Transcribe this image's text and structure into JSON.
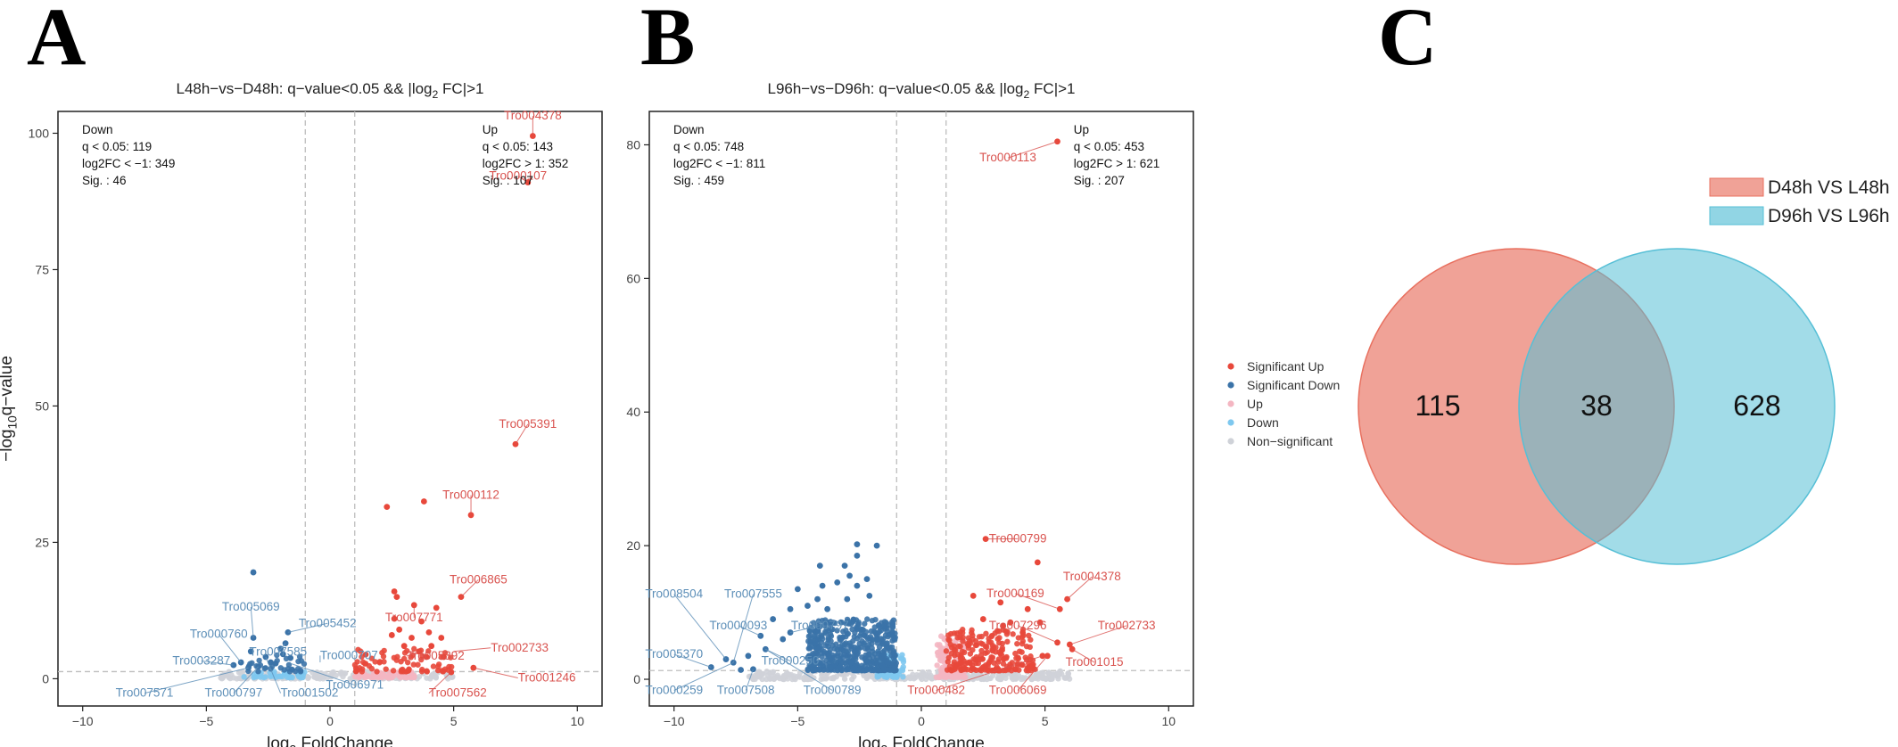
{
  "panels": {
    "a": "A",
    "b": "B",
    "c": "C"
  },
  "colors": {
    "sig_up": "#E8483B",
    "sig_down": "#3B73A8",
    "up": "#F4B6C2",
    "down": "#7EC8EF",
    "nonsig": "#CFD2D8",
    "venn_a": "#E8705F",
    "venn_b": "#56BFD6",
    "label_up": "#D9534F",
    "label_down": "#5D8FB8"
  },
  "legend": {
    "items": [
      {
        "label": "Significant Up",
        "color": "#E8483B"
      },
      {
        "label": "Significant Down",
        "color": "#3B73A8"
      },
      {
        "label": "Up",
        "color": "#F4B6C2"
      },
      {
        "label": "Down",
        "color": "#7EC8EF"
      },
      {
        "label": "Non−significant",
        "color": "#CFD2D8"
      }
    ]
  },
  "chart_data": [
    {
      "type": "scatter",
      "title_prefix": "L48h−vs−D48h: q−value<0.05 && |log",
      "title_sub": "2",
      "title_suffix": " FC|>1",
      "xlabel_pre": "log",
      "xlabel_sub": "2",
      "xlabel_post": " FoldChange",
      "ylabel_pre": "−log",
      "ylabel_sub": "10",
      "ylabel_post": "q−value",
      "xlim": [
        -11,
        11
      ],
      "ylim": [
        -5,
        104
      ],
      "xticks": [
        -10,
        -5,
        0,
        5,
        10
      ],
      "yticks": [
        0,
        25,
        50,
        75,
        100
      ],
      "vlines": [
        -1,
        1
      ],
      "hline": 1.3,
      "stats_down": [
        "Down",
        "q < 0.05: 119",
        "log2FC < −1: 349",
        "Sig. : 46"
      ],
      "stats_up": [
        "Up",
        "q < 0.05: 143",
        "log2FC > 1: 352",
        "Sig. : 107"
      ],
      "sig_up": [
        [
          8.2,
          99.5
        ],
        [
          8.0,
          91
        ],
        [
          7.5,
          43
        ],
        [
          5.7,
          30
        ],
        [
          3.8,
          32.5
        ],
        [
          2.3,
          31.5
        ],
        [
          5.3,
          15
        ],
        [
          2.6,
          16
        ],
        [
          2.7,
          15
        ],
        [
          3.4,
          13.5
        ],
        [
          4.3,
          13
        ],
        [
          3.7,
          10.5
        ],
        [
          4.0,
          8.5
        ],
        [
          2.6,
          11
        ],
        [
          3.3,
          7.5
        ],
        [
          4.1,
          6
        ],
        [
          3.6,
          5
        ],
        [
          4.6,
          4
        ],
        [
          5.8,
          2
        ],
        [
          4.9,
          1.2
        ],
        [
          3.0,
          6
        ],
        [
          2.8,
          9
        ],
        [
          4.5,
          7.5
        ],
        [
          3.9,
          4
        ],
        [
          2.5,
          8
        ]
      ],
      "sig_down": [
        [
          -3.1,
          19.5
        ],
        [
          -3.1,
          7.5
        ],
        [
          -1.7,
          8.5
        ],
        [
          -1.8,
          6.5
        ],
        [
          -2.0,
          5.5
        ],
        [
          -3.2,
          5
        ],
        [
          -3.6,
          3
        ],
        [
          -3.9,
          2.5
        ],
        [
          -2.6,
          4
        ],
        [
          -2.4,
          3
        ],
        [
          -1.9,
          4.5
        ],
        [
          -2.9,
          2.2
        ],
        [
          -3.3,
          2.0
        ],
        [
          -2.2,
          2.8
        ],
        [
          -1.6,
          3.8
        ]
      ],
      "sig_up_cluster": {
        "x": [
          1.0,
          5.0
        ],
        "y": [
          1.3,
          6.0
        ],
        "n": 75
      },
      "up_cluster": {
        "x": [
          1.0,
          3.5
        ],
        "y": [
          0.2,
          1.3
        ],
        "n": 70
      },
      "down_cluster": {
        "x": [
          -3.5,
          -1.0
        ],
        "y": [
          0.2,
          1.3
        ],
        "n": 40
      },
      "sig_down_cluster": {
        "x": [
          -3.5,
          -1.0
        ],
        "y": [
          1.3,
          4.5
        ],
        "n": 30
      },
      "nonsig_cluster": {
        "x": [
          -4.5,
          5.0
        ],
        "y": [
          0.0,
          1.3
        ],
        "n": 200
      },
      "labels": [
        {
          "text": "Tro004378",
          "side": "up",
          "px": [
            8.2,
            99.5
          ],
          "tx": [
            8.2,
            102.5
          ],
          "anchor": "middle"
        },
        {
          "text": "Tro000107",
          "side": "up",
          "px": [
            8.0,
            91
          ],
          "tx": [
            7.6,
            91.5
          ],
          "anchor": "middle"
        },
        {
          "text": "Tro005391",
          "side": "up",
          "px": [
            7.5,
            43
          ],
          "tx": [
            8.0,
            46
          ],
          "anchor": "middle"
        },
        {
          "text": "Tro000112",
          "side": "up",
          "px": [
            5.7,
            30
          ],
          "tx": [
            5.7,
            33
          ],
          "anchor": "middle"
        },
        {
          "text": "Tro006865",
          "side": "up",
          "px": [
            5.3,
            15
          ],
          "tx": [
            6.0,
            17.5
          ],
          "anchor": "middle"
        },
        {
          "text": "Tro007771",
          "side": "up",
          "px": [
            3.4,
            13.5
          ],
          "tx": [
            3.4,
            10.5
          ],
          "anchor": "middle"
        },
        {
          "text": "Tro002733",
          "side": "up",
          "px": [
            5.0,
            5.0
          ],
          "tx": [
            6.5,
            5.0
          ],
          "anchor": "start"
        },
        {
          "text": "Tro005392",
          "side": "up",
          "px": [
            3.6,
            5
          ],
          "tx": [
            3.1,
            3.5
          ],
          "anchor": "start"
        },
        {
          "text": "Tro001246",
          "side": "up",
          "px": [
            5.8,
            2
          ],
          "tx": [
            7.6,
            -0.5
          ],
          "anchor": "start"
        },
        {
          "text": "Tro007562",
          "side": "up",
          "px": [
            4.9,
            1.2
          ],
          "tx": [
            4.0,
            -3.3
          ],
          "anchor": "start"
        },
        {
          "text": "Tro005069",
          "side": "down",
          "px": [
            -3.1,
            7.5
          ],
          "tx": [
            -3.2,
            12.5
          ],
          "anchor": "middle"
        },
        {
          "text": "Tro005452",
          "side": "down",
          "px": [
            -1.7,
            8.5
          ],
          "tx": [
            -0.1,
            9.5
          ],
          "anchor": "middle"
        },
        {
          "text": "Tro000760",
          "side": "down",
          "px": [
            -3.6,
            3
          ],
          "tx": [
            -4.5,
            7.5
          ],
          "anchor": "middle"
        },
        {
          "text": "Tro007585",
          "side": "down",
          "px": [
            -1.8,
            6.5
          ],
          "tx": [
            -2.1,
            4.2
          ],
          "anchor": "middle"
        },
        {
          "text": "Tro000707",
          "side": "down",
          "px": [
            -0.4,
            3.0
          ],
          "tx": [
            -0.4,
            3.6
          ],
          "anchor": "start"
        },
        {
          "text": "Tro003287",
          "side": "down",
          "px": [
            -3.9,
            2.5
          ],
          "tx": [
            -5.2,
            2.6
          ],
          "anchor": "middle"
        },
        {
          "text": "Tro006971",
          "side": "down",
          "px": [
            -1.6,
            2.8
          ],
          "tx": [
            1.0,
            -1.8
          ],
          "anchor": "middle"
        },
        {
          "text": "Tro000797",
          "side": "down",
          "px": [
            -2.9,
            2.2
          ],
          "tx": [
            -3.9,
            -3.3
          ],
          "anchor": "middle"
        },
        {
          "text": "Tro001502",
          "side": "down",
          "px": [
            -2.6,
            4
          ],
          "tx": [
            -2.0,
            -3.3
          ],
          "anchor": "start"
        },
        {
          "text": "Tro007571",
          "side": "down",
          "px": [
            -3.3,
            2.0
          ],
          "tx": [
            -7.5,
            -3.3
          ],
          "anchor": "middle"
        }
      ]
    },
    {
      "type": "scatter",
      "title_prefix": "L96h−vs−D96h: q−value<0.05 && |log",
      "title_sub": "2",
      "title_suffix": " FC|>1",
      "xlabel_pre": "log",
      "xlabel_sub": "2",
      "xlabel_post": " FoldChange",
      "ylabel_pre": "",
      "ylabel_sub": "",
      "ylabel_post": "",
      "xlim": [
        -11,
        11
      ],
      "ylim": [
        -4,
        85
      ],
      "xticks": [
        -10,
        -5,
        0,
        5,
        10
      ],
      "yticks": [
        0,
        20,
        40,
        60,
        80
      ],
      "vlines": [
        -1,
        1
      ],
      "hline": 1.3,
      "stats_down": [
        "Down",
        "q < 0.05: 748",
        "log2FC < −1: 811",
        "Sig. : 459"
      ],
      "stats_up": [
        "Up",
        "q < 0.05: 453",
        "log2FC > 1: 621",
        "Sig. : 207"
      ],
      "sig_up": [
        [
          5.5,
          80.5
        ],
        [
          2.6,
          21
        ],
        [
          4.7,
          17.5
        ],
        [
          5.9,
          12
        ],
        [
          5.6,
          10.5
        ],
        [
          3.2,
          11.5
        ],
        [
          4.3,
          10.5
        ],
        [
          4.8,
          8.5
        ],
        [
          6.0,
          5.2
        ],
        [
          5.5,
          5.5
        ],
        [
          4.9,
          3.5
        ],
        [
          5.1,
          3.5
        ],
        [
          6.1,
          4.5
        ],
        [
          2.1,
          12.5
        ],
        [
          3.6,
          8.5
        ],
        [
          2.5,
          9
        ],
        [
          4.1,
          7
        ],
        [
          3.3,
          8
        ]
      ],
      "sig_down": [
        [
          -1.8,
          20
        ],
        [
          -2.6,
          20.2
        ],
        [
          -2.6,
          18.5
        ],
        [
          -2.9,
          15.5
        ],
        [
          -3.1,
          17
        ],
        [
          -4.1,
          17
        ],
        [
          -3.4,
          14.5
        ],
        [
          -2.2,
          15
        ],
        [
          -2.1,
          12.5
        ],
        [
          -3.0,
          12
        ],
        [
          -4.2,
          12
        ],
        [
          -4.6,
          11
        ],
        [
          -3.8,
          10.5
        ],
        [
          -5.3,
          10.5
        ],
        [
          -2.6,
          14
        ],
        [
          -4.0,
          14
        ],
        [
          -5.0,
          13.5
        ],
        [
          -5.3,
          7
        ],
        [
          -6.0,
          9
        ],
        [
          -6.5,
          6.5
        ],
        [
          -7.9,
          3
        ],
        [
          -7.6,
          2.5
        ],
        [
          -8.5,
          1.8
        ],
        [
          -6.3,
          4.5
        ],
        [
          -5.6,
          6
        ],
        [
          -7.0,
          3.5
        ],
        [
          -6.8,
          1.5
        ],
        [
          -7.3,
          1.4
        ]
      ],
      "sig_up_cluster": {
        "x": [
          1.0,
          4.6
        ],
        "y": [
          1.3,
          7.5
        ],
        "n": 220
      },
      "up_cluster": {
        "x": [
          0.6,
          1.8
        ],
        "y": [
          0.3,
          6.5
        ],
        "n": 110
      },
      "down_cluster": {
        "x": [
          -1.8,
          -0.7
        ],
        "y": [
          0.3,
          4.0
        ],
        "n": 60
      },
      "sig_down_cluster": {
        "x": [
          -4.6,
          -1.0
        ],
        "y": [
          1.3,
          9.0
        ],
        "n": 480
      },
      "nonsig_cluster": {
        "x": [
          -7.0,
          6.0
        ],
        "y": [
          0.0,
          1.3
        ],
        "n": 320
      },
      "labels": [
        {
          "text": "Tro000113",
          "side": "up",
          "px": [
            5.5,
            80.5
          ],
          "tx": [
            3.5,
            77.5
          ],
          "anchor": "middle"
        },
        {
          "text": "Tro000799",
          "side": "up",
          "px": [
            2.6,
            21
          ],
          "tx": [
            3.9,
            20.5
          ],
          "anchor": "middle"
        },
        {
          "text": "Tro004378",
          "side": "up",
          "px": [
            5.9,
            12
          ],
          "tx": [
            6.9,
            14.8
          ],
          "anchor": "middle"
        },
        {
          "text": "Tro000169",
          "side": "up",
          "px": [
            5.6,
            10.5
          ],
          "tx": [
            3.8,
            12.3
          ],
          "anchor": "middle"
        },
        {
          "text": "Tro002733",
          "side": "up",
          "px": [
            6.0,
            5.2
          ],
          "tx": [
            8.3,
            7.5
          ],
          "anchor": "middle"
        },
        {
          "text": "Tro007296",
          "side": "up",
          "px": [
            5.5,
            5.5
          ],
          "tx": [
            3.9,
            7.5
          ],
          "anchor": "middle"
        },
        {
          "text": "Tro001015",
          "side": "up",
          "px": [
            6.1,
            4.5
          ],
          "tx": [
            7.0,
            2.0
          ],
          "anchor": "middle"
        },
        {
          "text": "Tro000482",
          "side": "up",
          "px": [
            4.9,
            3.5
          ],
          "tx": [
            0.6,
            -2.2
          ],
          "anchor": "middle"
        },
        {
          "text": "Tro006069",
          "side": "up",
          "px": [
            5.1,
            3.5
          ],
          "tx": [
            3.9,
            -2.2
          ],
          "anchor": "middle"
        },
        {
          "text": "Tro008504",
          "side": "down",
          "px": [
            -7.9,
            3
          ],
          "tx": [
            -10.0,
            12.2
          ],
          "anchor": "middle"
        },
        {
          "text": "Tro007555",
          "side": "down",
          "px": [
            -7.6,
            2.5
          ],
          "tx": [
            -6.8,
            12.2
          ],
          "anchor": "middle"
        },
        {
          "text": "Tro000093",
          "side": "down",
          "px": [
            -6.5,
            6.5
          ],
          "tx": [
            -7.4,
            7.5
          ],
          "anchor": "middle"
        },
        {
          "text": "Tro000797",
          "side": "down",
          "px": [
            -5.3,
            7
          ],
          "tx": [
            -4.1,
            7.5
          ],
          "anchor": "middle"
        },
        {
          "text": "Tro005370",
          "side": "down",
          "px": [
            -8.5,
            1.8
          ],
          "tx": [
            -10.0,
            3.2
          ],
          "anchor": "middle"
        },
        {
          "text": "Tro000250",
          "side": "down",
          "px": [
            -6.3,
            4.5
          ],
          "tx": [
            -5.3,
            2.2
          ],
          "anchor": "middle"
        },
        {
          "text": "Tro000259",
          "side": "down",
          "px": [
            -7.6,
            2.5
          ],
          "tx": [
            -10.0,
            -2.2
          ],
          "anchor": "middle"
        },
        {
          "text": "Tro007508",
          "side": "down",
          "px": [
            -6.8,
            1.5
          ],
          "tx": [
            -7.1,
            -2.2
          ],
          "anchor": "middle"
        },
        {
          "text": "Tro000789",
          "side": "down",
          "px": [
            -6.3,
            4.5
          ],
          "tx": [
            -3.6,
            -2.2
          ],
          "anchor": "middle"
        }
      ]
    },
    {
      "type": "venn",
      "sets": [
        {
          "name": "D48h VS L48h",
          "only": 115
        },
        {
          "name": "D96h VS L96h",
          "only": 628
        }
      ],
      "intersection": 38
    }
  ]
}
